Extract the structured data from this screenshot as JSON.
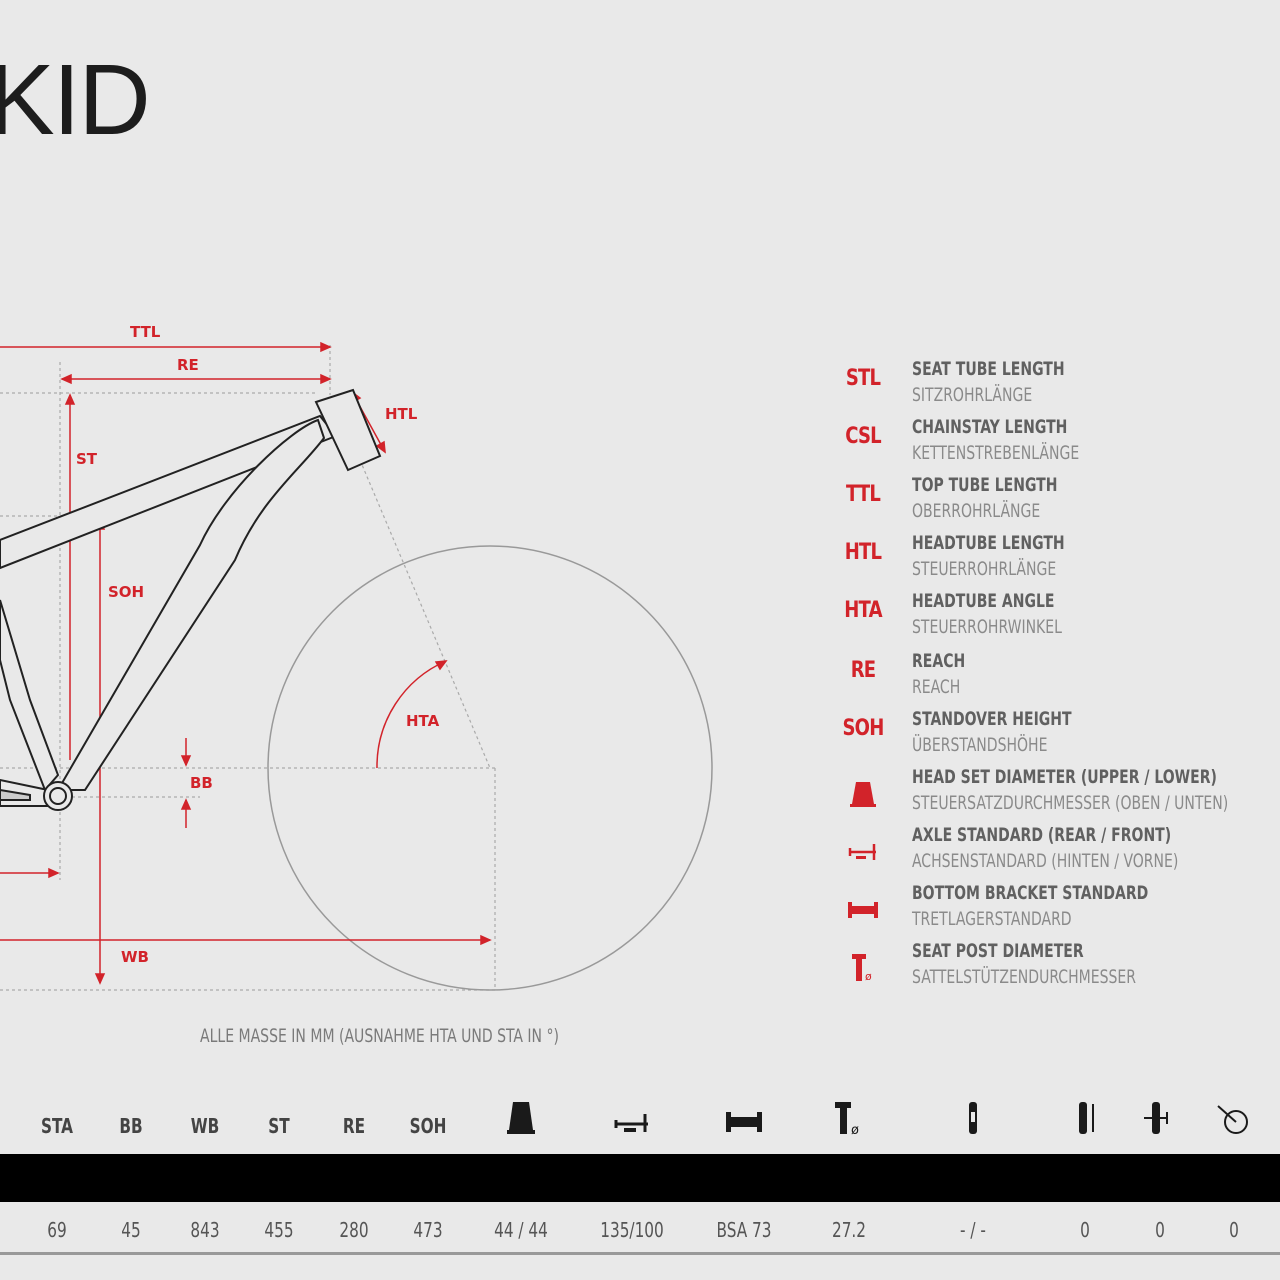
{
  "title": "KID",
  "diagram_labels": {
    "ttl": "TTL",
    "re": "RE",
    "htl": "HTL",
    "st": "ST",
    "soh": "SOH",
    "hta": "HTA",
    "bb": "BB",
    "wb": "WB"
  },
  "legend": [
    {
      "code": "STL",
      "name": "SEAT TUBE LENGTH",
      "sub": "SITZROHRLÄNGE"
    },
    {
      "code": "CSL",
      "name": "CHAINSTAY LENGTH",
      "sub": "KETTENSTREBENLÄNGE"
    },
    {
      "code": "TTL",
      "name": "TOP TUBE LENGTH",
      "sub": "OBERROHRLÄNGE"
    },
    {
      "code": "HTL",
      "name": "HEADTUBE LENGTH",
      "sub": "STEUERROHRLÄNGE"
    },
    {
      "code": "HTA",
      "name": "HEADTUBE ANGLE",
      "sub": "STEUERROHRWINKEL"
    },
    {
      "code": "RE",
      "name": "REACH",
      "sub": "REACH"
    },
    {
      "code": "SOH",
      "name": "STANDOVER HEIGHT",
      "sub": "ÜBERSTANDSHÖHE"
    },
    {
      "icon": "headset-icon",
      "name": "HEAD SET DIAMETER (UPPER / LOWER)",
      "sub": "STEUERSATZDURCHMESSER (OBEN / UNTEN)"
    },
    {
      "icon": "axle-icon",
      "name": "AXLE STANDARD (REAR / FRONT)",
      "sub": "ACHSENSTANDARD (HINTEN / VORNE)"
    },
    {
      "icon": "bottom-bracket-icon",
      "name": "BOTTOM BRACKET STANDARD",
      "sub": "TRETLAGERSTANDARD"
    },
    {
      "icon": "seatpost-icon",
      "name": "SEAT POST DIAMETER",
      "sub": "SATTELSTÜTZENDURCHMESSER"
    }
  ],
  "note": "ALLE MASSE IN MM (AUSNAHME HTA UND STA IN °)",
  "table": {
    "headers": [
      "STA",
      "BB",
      "WB",
      "ST",
      "RE",
      "SOH"
    ],
    "header_icons": [
      "headset-icon",
      "axle-icon",
      "bottom-bracket-icon",
      "seatpost-icon",
      "fork-icon",
      "rear-shock-icon",
      "shock-travel-icon",
      "wheel-size-icon"
    ],
    "values": [
      "69",
      "45",
      "843",
      "455",
      "280",
      "473",
      "44 / 44",
      "135/100",
      "BSA 73",
      "27.2",
      "- / -",
      "0",
      "0",
      "0"
    ]
  },
  "colors": {
    "accent": "#d2232a",
    "background": "#e9e9e9",
    "bar": "#000000"
  }
}
